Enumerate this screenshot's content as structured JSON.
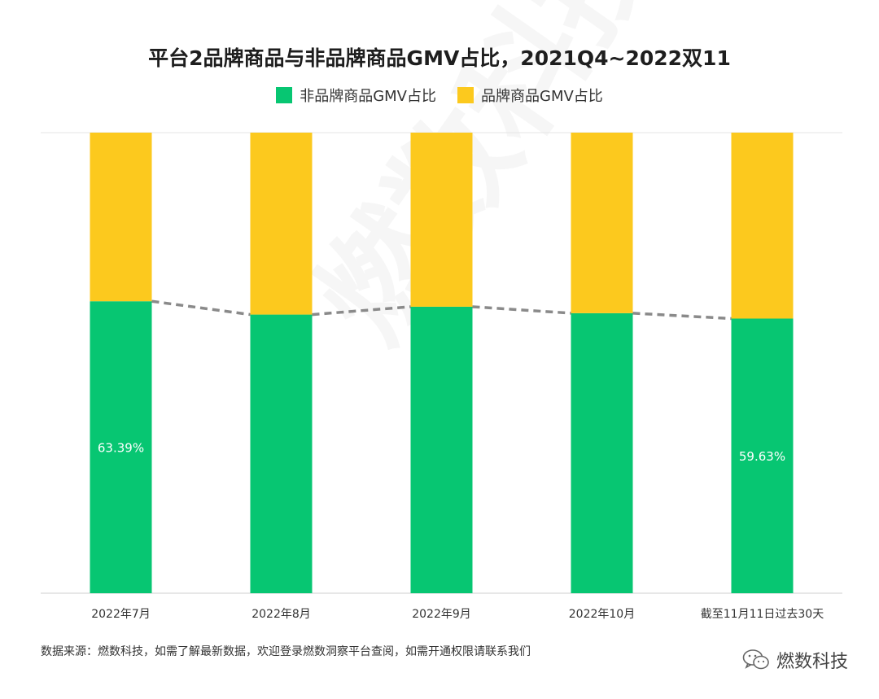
{
  "title": "平台2品牌商品与非品牌商品GMV占比，2021Q4~2022双11",
  "legend": [
    {
      "label": "非品牌商品GMV占比",
      "color": "#07C672"
    },
    {
      "label": "品牌商品GMV占比",
      "color": "#FCC91E"
    }
  ],
  "chart_data": {
    "type": "bar",
    "stacked": true,
    "normalized": true,
    "categories": [
      "2022年7月",
      "2022年8月",
      "2022年9月",
      "2022年10月",
      "截至11月11日过去30天"
    ],
    "series": [
      {
        "name": "非品牌商品GMV占比",
        "values": [
          63.39,
          60.5,
          62.2,
          60.8,
          59.63
        ],
        "color": "#07C672"
      },
      {
        "name": "品牌商品GMV占比",
        "values": [
          36.61,
          39.5,
          37.8,
          39.2,
          40.37
        ],
        "color": "#FCC91E"
      }
    ],
    "data_labels": [
      {
        "category_index": 0,
        "text": "63.39%"
      },
      {
        "category_index": 4,
        "text": "59.63%"
      }
    ],
    "trend_line": {
      "series": "非品牌商品GMV占比",
      "style": "dashed",
      "color": "#8a8a8a"
    },
    "ylim": [
      0,
      100
    ],
    "xlabel": "",
    "ylabel": "",
    "grid": false
  },
  "watermark_text": "燃数科技 DATA BURNING",
  "footer": {
    "source": "数据来源：燃数科技，如需了解最新数据，欢迎登录燃数洞察平台查阅，如需开通权限请联系我们",
    "brand": "燃数科技",
    "brand_icon": "wechat-icon"
  }
}
